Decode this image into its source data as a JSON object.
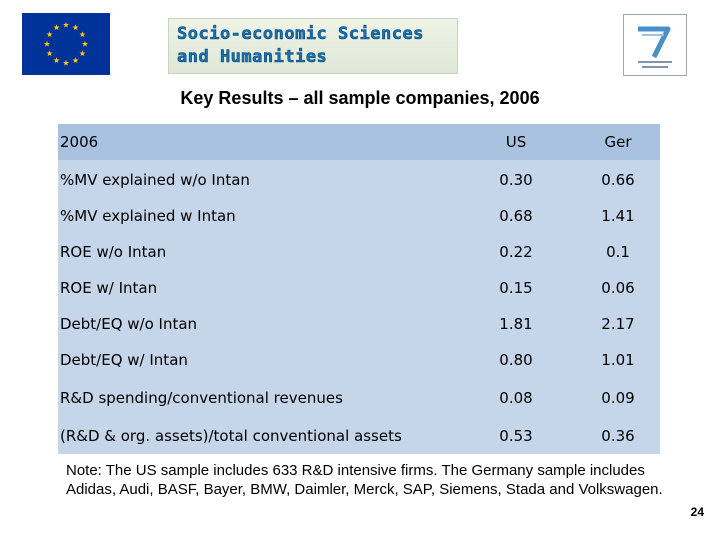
{
  "header": {
    "banner_line1": "Socio-economic Sciences",
    "banner_line2": "and Humanities",
    "colors": {
      "eu_blue": "#003399",
      "eu_star": "#ffcc00",
      "banner_text": "#1a6fa8",
      "table_bg": "#c5d6ea",
      "table_header_bg": "#a9c2e0"
    }
  },
  "title": "Key Results – all sample companies, 2006",
  "table": {
    "header": {
      "label": "2006",
      "us": "US",
      "ger": "Ger"
    },
    "rows": [
      {
        "label": "%MV explained w/o Intan",
        "us": "0.30",
        "ger": "0.66"
      },
      {
        "label": "%MV explained w Intan",
        "us": "0.68",
        "ger": "1.41"
      },
      {
        "label": "ROE w/o Intan",
        "us": "0.22",
        "ger": "0.1"
      },
      {
        "label": "ROE w/ Intan",
        "us": "0.15",
        "ger": "0.06"
      },
      {
        "label": "Debt/EQ w/o Intan",
        "us": "1.81",
        "ger": "2.17"
      },
      {
        "label": "Debt/EQ w/ Intan",
        "us": "0.80",
        "ger": "1.01"
      },
      {
        "label": "R&D spending/conventional revenues",
        "us": "0.08",
        "ger": "0.09"
      },
      {
        "label": "(R&D & org. assets)/total conventional assets",
        "us": "0.53",
        "ger": "0.36"
      }
    ]
  },
  "note": "Note: The US sample includes 633 R&D intensive firms.  The Germany sample includes Adidas, Audi, BASF, Bayer, BMW, Daimler, Merck, SAP, Siemens, Stada and Volkswagen.",
  "page_number": "24"
}
